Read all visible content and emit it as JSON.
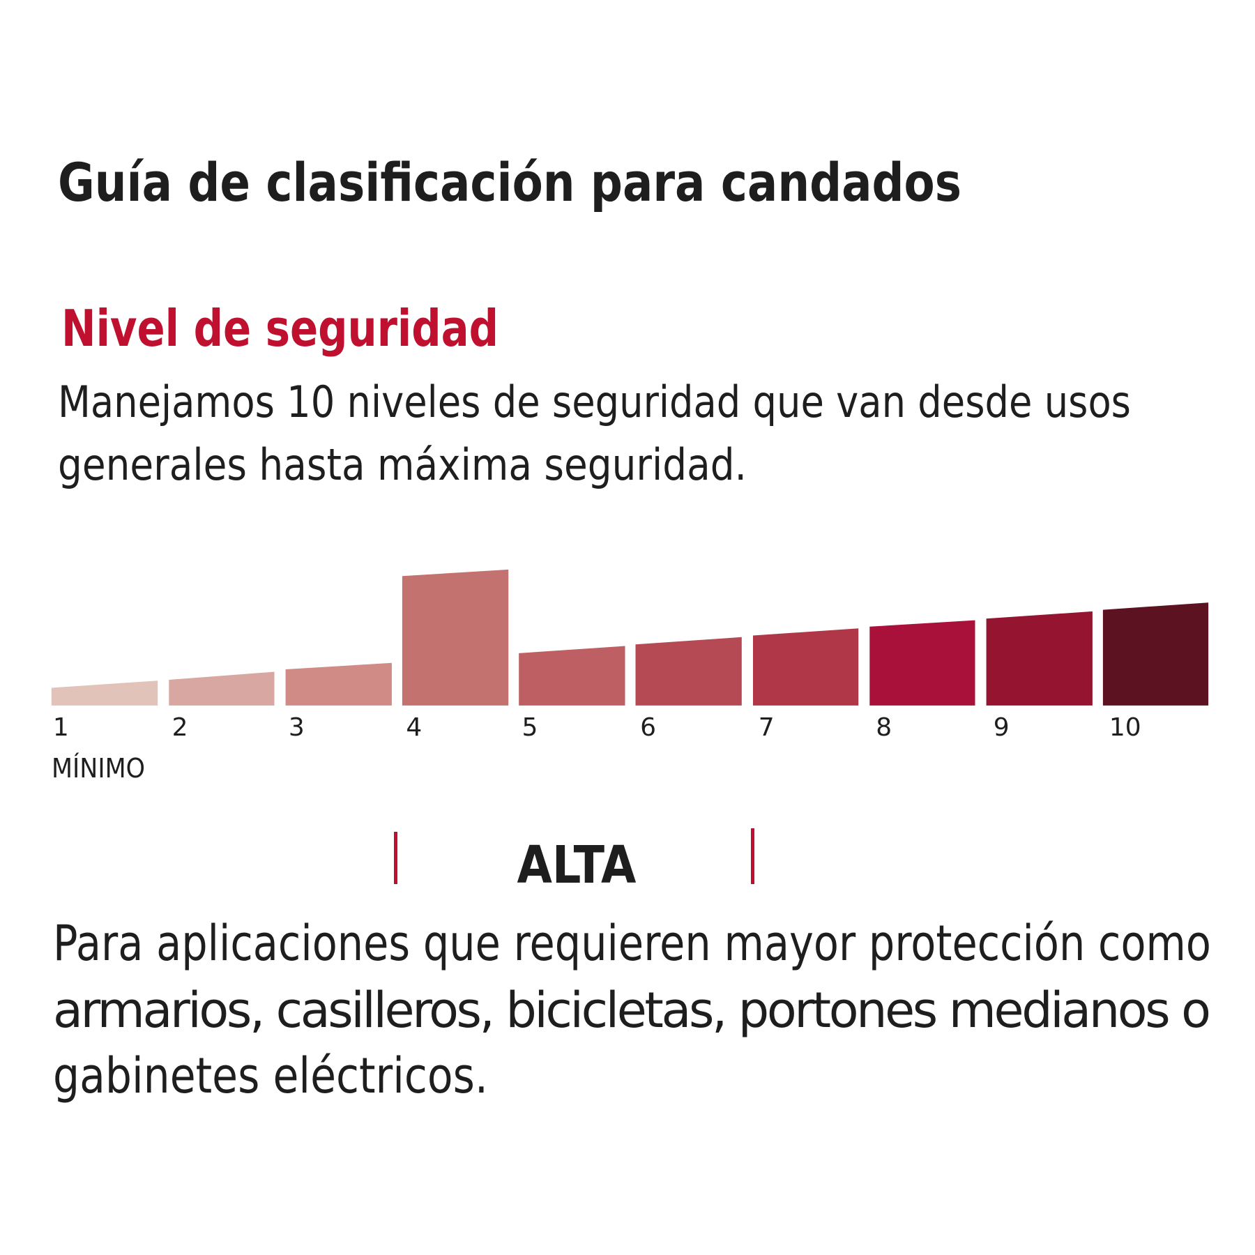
{
  "header": {
    "title": "Guía de clasificación para candados"
  },
  "section": {
    "heading": "Nivel de seguridad",
    "intro_lines": [
      "Manejamos 10 niveles de seguridad que van desde usos",
      "generales hasta máxima seguridad."
    ]
  },
  "scale": {
    "levels": [
      "1",
      "2",
      "3",
      "4",
      "5",
      "6",
      "7",
      "8",
      "9",
      "10"
    ],
    "min_label": "MÍNIMO"
  },
  "rating": {
    "label": "ALTA",
    "description_lines": [
      "Para aplicaciones que requieren mayor protección como",
      "armarios, casilleros, bicicletas, portones medianos o",
      "gabinetes eléctricos."
    ]
  }
}
